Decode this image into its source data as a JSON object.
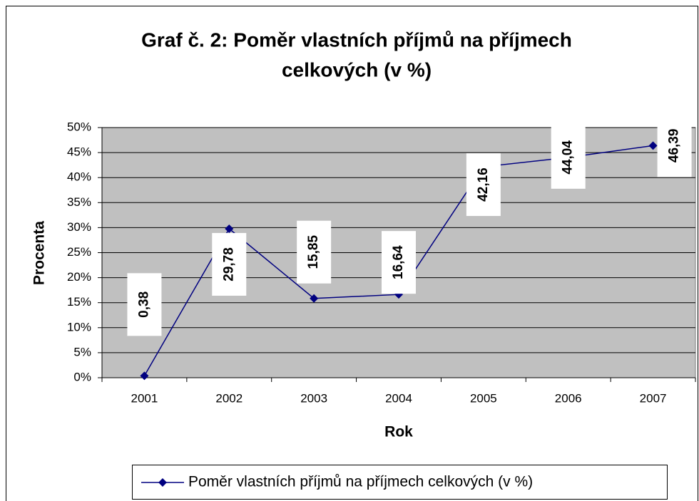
{
  "chart_data": {
    "type": "line",
    "title": [
      "Graf č. 2: Poměr vlastních příjmů na příjmech",
      "celkových (v %)"
    ],
    "x_label": "Rok",
    "y_label": "Procenta",
    "categories": [
      "2001",
      "2002",
      "2003",
      "2004",
      "2005",
      "2006",
      "2007"
    ],
    "series": [
      {
        "name": "Poměr vlastních příjmů na příjmech celkových (v %)",
        "color": "#000080",
        "values": [
          0.38,
          29.78,
          15.85,
          16.64,
          42.16,
          44.04,
          46.39
        ],
        "value_labels": [
          "0,38",
          "29,78",
          "15,85",
          "16,64",
          "42,16",
          "44,04",
          "46,39"
        ]
      }
    ],
    "ylim": [
      0,
      50
    ],
    "yticks": [
      {
        "value": 0,
        "label": "0%"
      },
      {
        "value": 5,
        "label": "5%"
      },
      {
        "value": 10,
        "label": "10%"
      },
      {
        "value": 15,
        "label": "15%"
      },
      {
        "value": 20,
        "label": "20%"
      },
      {
        "value": 25,
        "label": "25%"
      },
      {
        "value": 30,
        "label": "30%"
      },
      {
        "value": 35,
        "label": "35%"
      },
      {
        "value": 40,
        "label": "40%"
      },
      {
        "value": 45,
        "label": "45%"
      },
      {
        "value": 50,
        "label": "50%"
      }
    ],
    "grid": true,
    "legend": "bottom"
  }
}
